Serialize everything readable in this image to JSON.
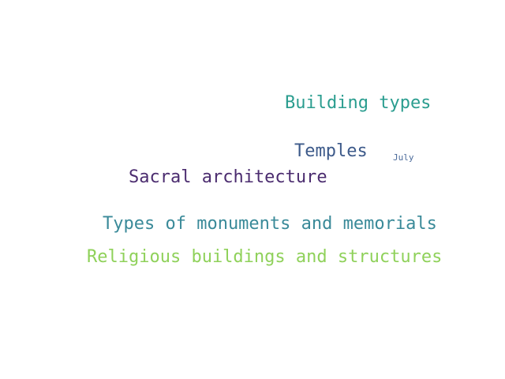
{
  "words": [
    {
      "text": "Building types",
      "color": "#2a9d8f"
    },
    {
      "text": "Temples",
      "color": "#3d5a8a"
    },
    {
      "text": "July",
      "color": "#4a6a9a"
    },
    {
      "text": "Sacral architecture",
      "color": "#4b2c6f"
    },
    {
      "text": "Types of monuments and memorials",
      "color": "#3a8a99"
    },
    {
      "text": "Religious buildings and structures",
      "color": "#8fd15a"
    }
  ]
}
